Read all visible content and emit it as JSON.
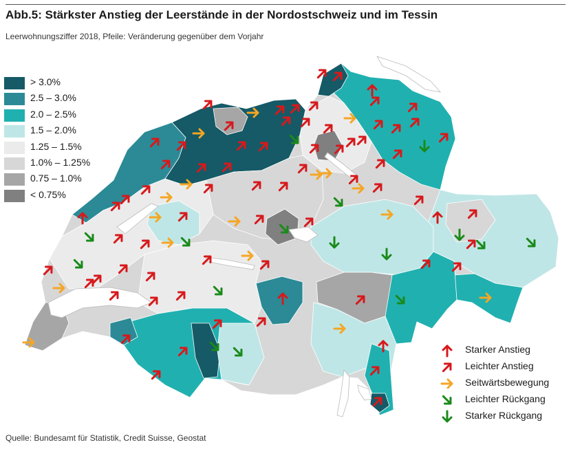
{
  "header": {
    "title": "Abb.5: Stärkster Anstieg der Leerstände in der Nordostschweiz und im Tessin",
    "subtitle": "Leerwohnungsziffer 2018, Pfeile: Veränderung gegenüber dem Vorjahr"
  },
  "footer": {
    "source": "Quelle: Bundesamt für Statistik, Credit Suisse, Geostat"
  },
  "colors": {
    "class_gt3": "#155a66",
    "class_25_30": "#2b8a96",
    "class_20_25": "#21b0b0",
    "class_15_20": "#bfe6e6",
    "class_125_15": "#ebebeb",
    "class_10_125": "#d7d7d7",
    "class_075_10": "#a6a6a6",
    "class_lt075": "#808080",
    "lake": "#ffffff",
    "arrow_strong_up": "#d7191c",
    "arrow_up": "#d7191c",
    "arrow_flat": "#f5a623",
    "arrow_down": "#1a8a1a",
    "arrow_strong_down": "#1a8a1a"
  },
  "legend": {
    "classes": [
      {
        "label": "> 3.0%",
        "key": "class_gt3"
      },
      {
        "label": "2.5 – 3.0%",
        "key": "class_25_30"
      },
      {
        "label": "2.0 – 2.5%",
        "key": "class_20_25"
      },
      {
        "label": "1.5 – 2.0%",
        "key": "class_15_20"
      },
      {
        "label": "1.25 – 1.5%",
        "key": "class_125_15"
      },
      {
        "label": "1.0% – 1.25%",
        "key": "class_10_125"
      },
      {
        "label": "0.75 – 1.0%",
        "key": "class_075_10"
      },
      {
        "label": "< 0.75%",
        "key": "class_lt075"
      }
    ],
    "arrows": [
      {
        "label": "Starker Anstieg",
        "kind": "strong_up"
      },
      {
        "label": "Leichter Anstieg",
        "kind": "up"
      },
      {
        "label": "Seitwärtsbewegung",
        "kind": "flat"
      },
      {
        "label": "Leichter Rückgang",
        "kind": "down"
      },
      {
        "label": "Starker Rückgang",
        "kind": "strong_down"
      }
    ]
  }
}
